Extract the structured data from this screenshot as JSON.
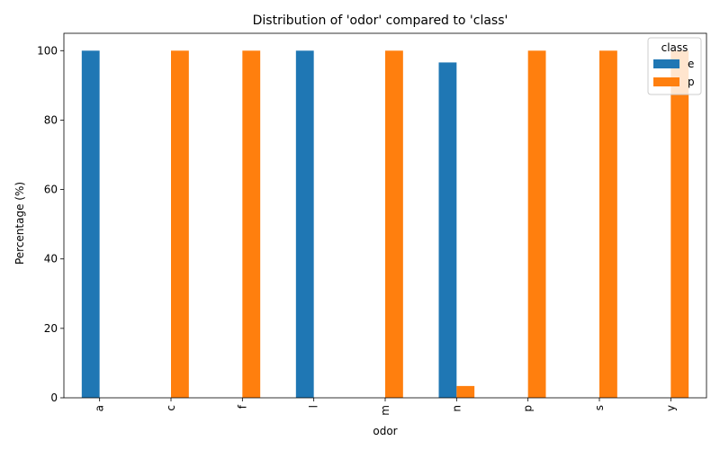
{
  "chart_data": {
    "type": "bar",
    "title": "Distribution of 'odor' compared to 'class'",
    "xlabel": "odor",
    "ylabel": "Percentage (%)",
    "categories": [
      "a",
      "c",
      "f",
      "l",
      "m",
      "n",
      "p",
      "s",
      "y"
    ],
    "series": [
      {
        "name": "e",
        "color": "#1f77b4",
        "values": [
          100,
          0,
          0,
          100,
          0,
          96.6,
          0,
          0,
          0
        ]
      },
      {
        "name": "p",
        "color": "#ff7f0e",
        "values": [
          0,
          100,
          100,
          0,
          100,
          3.4,
          100,
          100,
          100
        ]
      }
    ],
    "ylim": [
      0,
      105
    ],
    "yticks": [
      0,
      20,
      40,
      60,
      80,
      100
    ],
    "legend": {
      "title": "class",
      "placement": "top-right"
    },
    "grid": false
  }
}
